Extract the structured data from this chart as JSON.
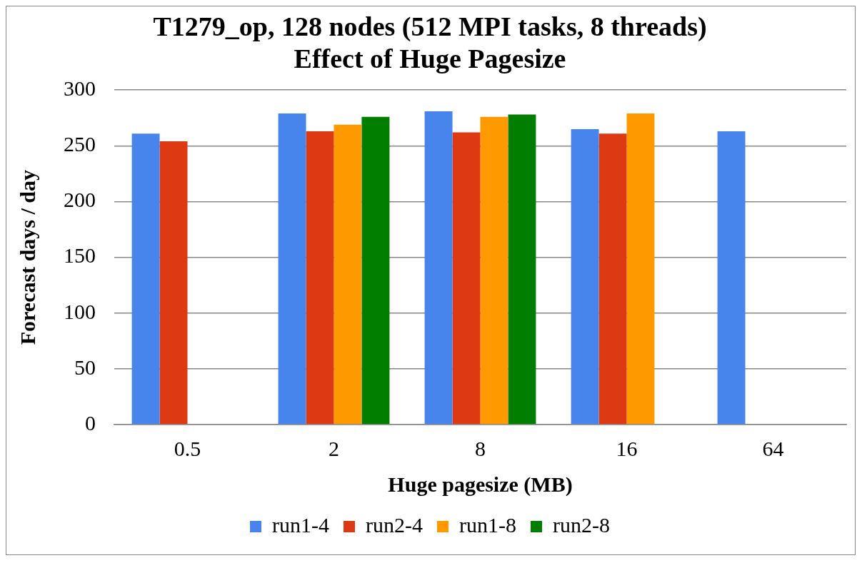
{
  "chart_data": {
    "type": "bar",
    "title": [
      "T1279_op, 128 nodes (512 MPI tasks, 8 threads)",
      "Effect of Huge Pagesize"
    ],
    "xlabel": "Huge pagesize (MB)",
    "ylabel": "Forecast days / day",
    "categories": [
      "0.5",
      "2",
      "8",
      "16",
      "64"
    ],
    "series": [
      {
        "name": "run1-4",
        "color": "#4785ec",
        "values": [
          261,
          279,
          281,
          265,
          263
        ]
      },
      {
        "name": "run2-4",
        "color": "#dd3a13",
        "values": [
          254,
          263,
          262,
          261,
          null
        ]
      },
      {
        "name": "run1-8",
        "color": "#fe9900",
        "values": [
          null,
          269,
          276,
          279,
          null
        ]
      },
      {
        "name": "run2-8",
        "color": "#017d00",
        "values": [
          null,
          276,
          278,
          null,
          null
        ]
      }
    ],
    "ylim": [
      0,
      300
    ],
    "yticks": [
      0,
      50,
      100,
      150,
      200,
      250,
      300
    ],
    "grid": "y",
    "legend": "bottom"
  }
}
